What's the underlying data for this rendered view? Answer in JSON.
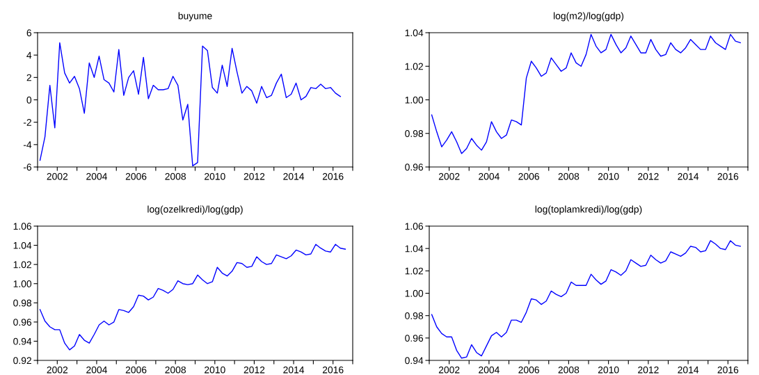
{
  "chart_data": [
    {
      "type": "line",
      "title": "buyume",
      "line_style": "solid",
      "marker": "none",
      "grid": false,
      "xlim": [
        2001,
        2017
      ],
      "xticks": [
        {
          "value": 2001,
          "label": null
        },
        2002,
        {
          "value": 2003,
          "label": null
        },
        2004,
        {
          "value": 2005,
          "label": null
        },
        2006,
        {
          "value": 2007,
          "label": null
        },
        2008,
        {
          "value": 2009,
          "label": null
        },
        2010,
        {
          "value": 2011,
          "label": null
        },
        2012,
        {
          "value": 2013,
          "label": null
        },
        2014,
        {
          "value": 2015,
          "label": null
        },
        2016,
        {
          "value": 2017,
          "label": null
        }
      ],
      "ylim": [
        -6,
        6
      ],
      "yticks": [
        -6,
        -4,
        -2,
        0,
        2,
        4,
        6
      ],
      "x": [
        2001.125,
        2001.375,
        2001.625,
        2001.875,
        2002.125,
        2002.375,
        2002.625,
        2002.875,
        2003.125,
        2003.375,
        2003.625,
        2003.875,
        2004.125,
        2004.375,
        2004.625,
        2004.875,
        2005.125,
        2005.375,
        2005.625,
        2005.875,
        2006.125,
        2006.375,
        2006.625,
        2006.875,
        2007.125,
        2007.375,
        2007.625,
        2007.875,
        2008.125,
        2008.375,
        2008.625,
        2008.875,
        2009.125,
        2009.375,
        2009.625,
        2009.875,
        2010.125,
        2010.375,
        2010.625,
        2010.875,
        2011.125,
        2011.375,
        2011.625,
        2011.875,
        2012.125,
        2012.375,
        2012.625,
        2012.875,
        2013.125,
        2013.375,
        2013.625,
        2013.875,
        2014.125,
        2014.375,
        2014.625,
        2014.875,
        2015.125,
        2015.375,
        2015.625,
        2015.875,
        2016.125,
        2016.375
      ],
      "series": [
        {
          "color": "#0000ff",
          "values": [
            -5.4,
            -3.3,
            1.3,
            -2.5,
            5.1,
            2.4,
            1.5,
            2.1,
            1.0,
            -1.2,
            3.3,
            2.0,
            3.9,
            1.8,
            1.5,
            0.7,
            4.5,
            0.4,
            2.0,
            2.6,
            0.5,
            3.8,
            0.1,
            1.3,
            0.9,
            0.9,
            1.0,
            2.1,
            1.3,
            -1.8,
            -0.4,
            -5.9,
            -5.6,
            4.8,
            4.4,
            1.1,
            0.6,
            3.1,
            1.2,
            4.6,
            2.5,
            0.6,
            1.2,
            0.8,
            -0.3,
            1.2,
            0.2,
            0.4,
            1.5,
            2.3,
            0.2,
            0.5,
            1.5,
            0.0,
            0.3,
            1.1,
            1.0,
            1.4,
            1.0,
            1.1,
            0.6,
            0.3
          ]
        }
      ]
    },
    {
      "type": "line",
      "title": "log(m2)/log(gdp)",
      "line_style": "solid",
      "marker": "none",
      "grid": false,
      "xlim": [
        2001,
        2017
      ],
      "xticks": [
        {
          "value": 2001,
          "label": null
        },
        2002,
        {
          "value": 2003,
          "label": null
        },
        2004,
        {
          "value": 2005,
          "label": null
        },
        2006,
        {
          "value": 2007,
          "label": null
        },
        2008,
        {
          "value": 2009,
          "label": null
        },
        2010,
        {
          "value": 2011,
          "label": null
        },
        2012,
        {
          "value": 2013,
          "label": null
        },
        2014,
        {
          "value": 2015,
          "label": null
        },
        2016,
        {
          "value": 2017,
          "label": null
        }
      ],
      "ylim": [
        0.96,
        1.04
      ],
      "yticks": [
        {
          "value": 0.96,
          "label": "0.96"
        },
        {
          "value": 0.98,
          "label": "0.98"
        },
        {
          "value": 1.0,
          "label": "1.00"
        },
        {
          "value": 1.02,
          "label": "1.02"
        },
        {
          "value": 1.04,
          "label": "1.04"
        }
      ],
      "x": [
        2001.125,
        2001.375,
        2001.625,
        2001.875,
        2002.125,
        2002.375,
        2002.625,
        2002.875,
        2003.125,
        2003.375,
        2003.625,
        2003.875,
        2004.125,
        2004.375,
        2004.625,
        2004.875,
        2005.125,
        2005.375,
        2005.625,
        2005.875,
        2006.125,
        2006.375,
        2006.625,
        2006.875,
        2007.125,
        2007.375,
        2007.625,
        2007.875,
        2008.125,
        2008.375,
        2008.625,
        2008.875,
        2009.125,
        2009.375,
        2009.625,
        2009.875,
        2010.125,
        2010.375,
        2010.625,
        2010.875,
        2011.125,
        2011.375,
        2011.625,
        2011.875,
        2012.125,
        2012.375,
        2012.625,
        2012.875,
        2013.125,
        2013.375,
        2013.625,
        2013.875,
        2014.125,
        2014.375,
        2014.625,
        2014.875,
        2015.125,
        2015.375,
        2015.625,
        2015.875,
        2016.125,
        2016.375,
        2016.625
      ],
      "series": [
        {
          "color": "#0000ff",
          "values": [
            0.991,
            0.981,
            0.972,
            0.976,
            0.981,
            0.975,
            0.968,
            0.971,
            0.977,
            0.973,
            0.97,
            0.975,
            0.987,
            0.981,
            0.977,
            0.979,
            0.988,
            0.987,
            0.985,
            1.013,
            1.023,
            1.019,
            1.014,
            1.016,
            1.025,
            1.021,
            1.017,
            1.019,
            1.028,
            1.022,
            1.02,
            1.027,
            1.039,
            1.032,
            1.028,
            1.03,
            1.039,
            1.033,
            1.028,
            1.031,
            1.038,
            1.033,
            1.028,
            1.028,
            1.036,
            1.03,
            1.026,
            1.027,
            1.034,
            1.03,
            1.028,
            1.031,
            1.036,
            1.033,
            1.03,
            1.03,
            1.038,
            1.034,
            1.032,
            1.03,
            1.039,
            1.035,
            1.034
          ]
        }
      ]
    },
    {
      "type": "line",
      "title": "log(ozelkredi)/log(gdp)",
      "line_style": "solid",
      "marker": "none",
      "grid": false,
      "xlim": [
        2001,
        2017
      ],
      "xticks": [
        {
          "value": 2001,
          "label": null
        },
        2002,
        {
          "value": 2003,
          "label": null
        },
        2004,
        {
          "value": 2005,
          "label": null
        },
        2006,
        {
          "value": 2007,
          "label": null
        },
        2008,
        {
          "value": 2009,
          "label": null
        },
        2010,
        {
          "value": 2011,
          "label": null
        },
        2012,
        {
          "value": 2013,
          "label": null
        },
        2014,
        {
          "value": 2015,
          "label": null
        },
        2016,
        {
          "value": 2017,
          "label": null
        }
      ],
      "ylim": [
        0.92,
        1.06
      ],
      "yticks": [
        {
          "value": 0.92,
          "label": "0.92"
        },
        {
          "value": 0.94,
          "label": "0.94"
        },
        {
          "value": 0.96,
          "label": "0.96"
        },
        {
          "value": 0.98,
          "label": "0.98"
        },
        {
          "value": 1.0,
          "label": "1.00"
        },
        {
          "value": 1.02,
          "label": "1.02"
        },
        {
          "value": 1.04,
          "label": "1.04"
        },
        {
          "value": 1.06,
          "label": "1.06"
        }
      ],
      "x": [
        2001.125,
        2001.375,
        2001.625,
        2001.875,
        2002.125,
        2002.375,
        2002.625,
        2002.875,
        2003.125,
        2003.375,
        2003.625,
        2003.875,
        2004.125,
        2004.375,
        2004.625,
        2004.875,
        2005.125,
        2005.375,
        2005.625,
        2005.875,
        2006.125,
        2006.375,
        2006.625,
        2006.875,
        2007.125,
        2007.375,
        2007.625,
        2007.875,
        2008.125,
        2008.375,
        2008.625,
        2008.875,
        2009.125,
        2009.375,
        2009.625,
        2009.875,
        2010.125,
        2010.375,
        2010.625,
        2010.875,
        2011.125,
        2011.375,
        2011.625,
        2011.875,
        2012.125,
        2012.375,
        2012.625,
        2012.875,
        2013.125,
        2013.375,
        2013.625,
        2013.875,
        2014.125,
        2014.375,
        2014.625,
        2014.875,
        2015.125,
        2015.375,
        2015.625,
        2015.875,
        2016.125,
        2016.375,
        2016.625
      ],
      "series": [
        {
          "color": "#0000ff",
          "values": [
            0.973,
            0.961,
            0.955,
            0.952,
            0.952,
            0.938,
            0.931,
            0.935,
            0.947,
            0.941,
            0.938,
            0.947,
            0.957,
            0.961,
            0.957,
            0.96,
            0.973,
            0.972,
            0.97,
            0.976,
            0.988,
            0.987,
            0.983,
            0.986,
            0.995,
            0.993,
            0.99,
            0.994,
            1.003,
            1.0,
            0.999,
            1.0,
            1.009,
            1.004,
            1.0,
            1.002,
            1.017,
            1.011,
            1.008,
            1.013,
            1.022,
            1.021,
            1.017,
            1.018,
            1.028,
            1.023,
            1.02,
            1.021,
            1.03,
            1.028,
            1.026,
            1.029,
            1.035,
            1.033,
            1.03,
            1.031,
            1.041,
            1.037,
            1.034,
            1.033,
            1.041,
            1.037,
            1.036
          ]
        }
      ]
    },
    {
      "type": "line",
      "title": "log(toplamkredi)/log(gdp)",
      "line_style": "solid",
      "marker": "none",
      "grid": false,
      "xlim": [
        2001,
        2017
      ],
      "xticks": [
        {
          "value": 2001,
          "label": null
        },
        2002,
        {
          "value": 2003,
          "label": null
        },
        2004,
        {
          "value": 2005,
          "label": null
        },
        2006,
        {
          "value": 2007,
          "label": null
        },
        2008,
        {
          "value": 2009,
          "label": null
        },
        2010,
        {
          "value": 2011,
          "label": null
        },
        2012,
        {
          "value": 2013,
          "label": null
        },
        2014,
        {
          "value": 2015,
          "label": null
        },
        2016,
        {
          "value": 2017,
          "label": null
        }
      ],
      "ylim": [
        0.94,
        1.06
      ],
      "yticks": [
        {
          "value": 0.94,
          "label": "0.94"
        },
        {
          "value": 0.96,
          "label": "0.96"
        },
        {
          "value": 0.98,
          "label": "0.98"
        },
        {
          "value": 1.0,
          "label": "1.00"
        },
        {
          "value": 1.02,
          "label": "1.02"
        },
        {
          "value": 1.04,
          "label": "1.04"
        },
        {
          "value": 1.06,
          "label": "1.06"
        }
      ],
      "x": [
        2001.125,
        2001.375,
        2001.625,
        2001.875,
        2002.125,
        2002.375,
        2002.625,
        2002.875,
        2003.125,
        2003.375,
        2003.625,
        2003.875,
        2004.125,
        2004.375,
        2004.625,
        2004.875,
        2005.125,
        2005.375,
        2005.625,
        2005.875,
        2006.125,
        2006.375,
        2006.625,
        2006.875,
        2007.125,
        2007.375,
        2007.625,
        2007.875,
        2008.125,
        2008.375,
        2008.625,
        2008.875,
        2009.125,
        2009.375,
        2009.625,
        2009.875,
        2010.125,
        2010.375,
        2010.625,
        2010.875,
        2011.125,
        2011.375,
        2011.625,
        2011.875,
        2012.125,
        2012.375,
        2012.625,
        2012.875,
        2013.125,
        2013.375,
        2013.625,
        2013.875,
        2014.125,
        2014.375,
        2014.625,
        2014.875,
        2015.125,
        2015.375,
        2015.625,
        2015.875,
        2016.125,
        2016.375,
        2016.625
      ],
      "series": [
        {
          "color": "#0000ff",
          "values": [
            0.981,
            0.97,
            0.964,
            0.961,
            0.961,
            0.949,
            0.942,
            0.943,
            0.954,
            0.947,
            0.944,
            0.953,
            0.962,
            0.965,
            0.961,
            0.965,
            0.976,
            0.976,
            0.974,
            0.983,
            0.995,
            0.994,
            0.99,
            0.993,
            1.002,
            0.999,
            0.997,
            1.0,
            1.01,
            1.007,
            1.007,
            1.007,
            1.017,
            1.012,
            1.008,
            1.011,
            1.021,
            1.019,
            1.016,
            1.02,
            1.03,
            1.027,
            1.024,
            1.025,
            1.034,
            1.03,
            1.027,
            1.029,
            1.037,
            1.035,
            1.033,
            1.036,
            1.042,
            1.041,
            1.037,
            1.038,
            1.047,
            1.044,
            1.04,
            1.039,
            1.047,
            1.043,
            1.042
          ]
        }
      ]
    }
  ]
}
